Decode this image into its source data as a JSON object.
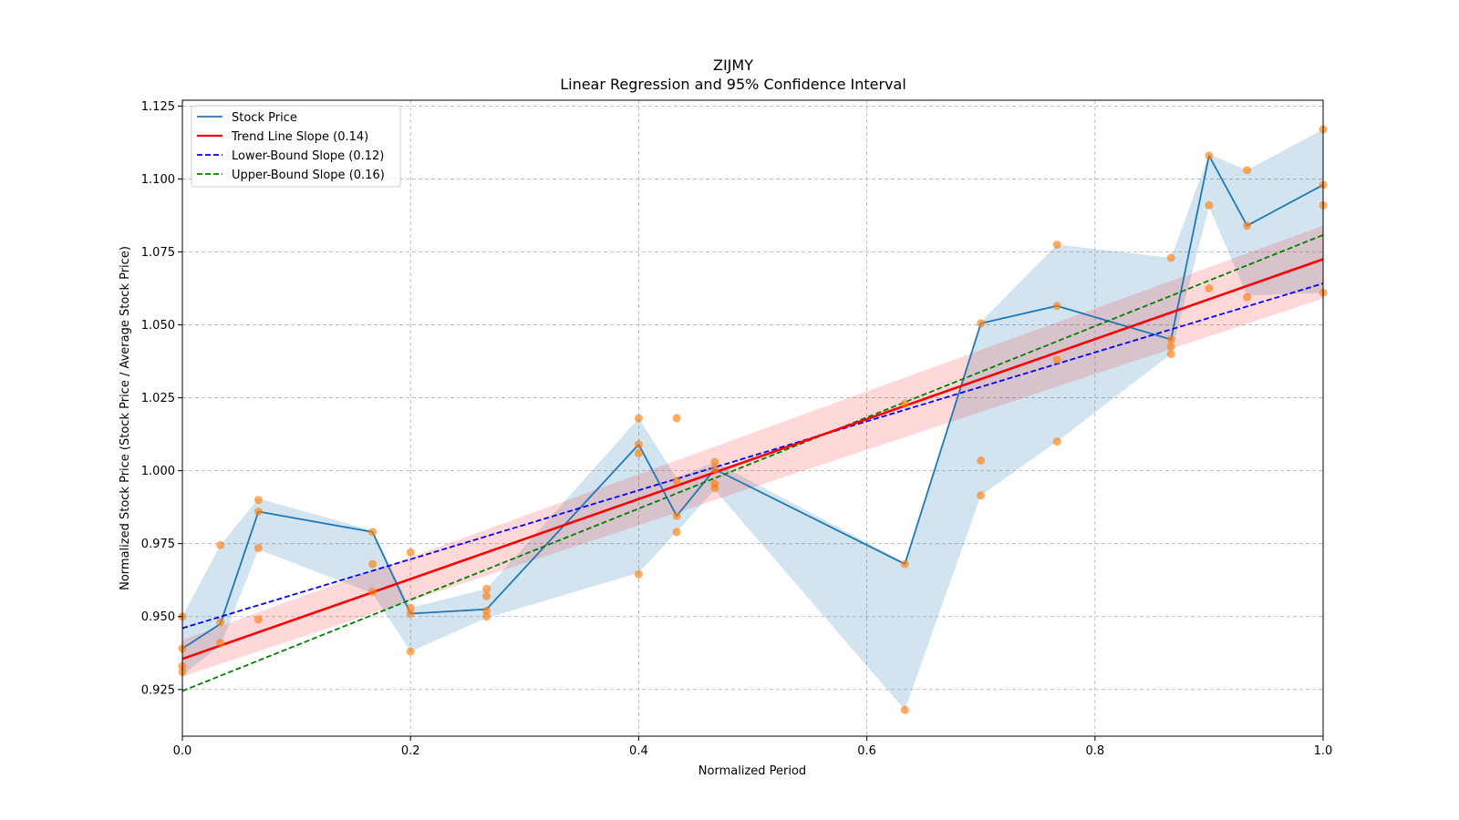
{
  "chart_data": {
    "type": "line",
    "title": "ZIJMY",
    "subtitle": "Linear Regression and 95% Confidence Interval",
    "xlabel": "Normalized Period",
    "ylabel": "Normalized Stock Price (Stock Price / Average Stock Price)",
    "xlim": [
      0.0,
      1.0
    ],
    "ylim": [
      0.909,
      1.127
    ],
    "x_ticks": [
      0.0,
      0.2,
      0.4,
      0.6,
      0.8,
      1.0
    ],
    "x_tick_labels": [
      "0.0",
      "0.2",
      "0.4",
      "0.6",
      "0.8",
      "1.0"
    ],
    "y_ticks": [
      0.925,
      0.95,
      0.975,
      1.0,
      1.025,
      1.05,
      1.075,
      1.1,
      1.125
    ],
    "y_tick_labels": [
      "0.925",
      "0.950",
      "0.975",
      "1.000",
      "1.025",
      "1.050",
      "1.075",
      "1.100",
      "1.125"
    ],
    "grid": true,
    "legend_position": "top-left",
    "colors": {
      "stock": "#1f77b4",
      "stock_band": "#1f77b4",
      "scatter": "#ff7f0e",
      "trend": "#ff0000",
      "trend_band": "#ff0000",
      "lower": "#0000ff",
      "upper": "#008000"
    },
    "series": [
      {
        "name": "Stock Price",
        "style": "solid",
        "x": [
          0.0,
          0.0333,
          0.0667,
          0.1667,
          0.2,
          0.2667,
          0.4,
          0.4333,
          0.4667,
          0.6333,
          0.7,
          0.7667,
          0.8667,
          0.9,
          0.9333,
          1.0
        ],
        "values": [
          0.939,
          0.9475,
          0.986,
          0.979,
          0.951,
          0.9525,
          1.009,
          0.9845,
          1.0005,
          0.968,
          1.0505,
          1.0565,
          1.045,
          1.108,
          1.084,
          1.098
        ],
        "band_lower": [
          0.93,
          0.94,
          0.973,
          0.958,
          0.938,
          0.9495,
          0.965,
          0.979,
          0.9935,
          0.918,
          0.9915,
          1.01,
          1.04,
          1.0905,
          1.06,
          1.061
        ],
        "band_upper": [
          0.95,
          0.9745,
          0.9905,
          0.9795,
          0.953,
          0.9595,
          1.018,
          0.9975,
          1.003,
          0.9685,
          1.051,
          1.0775,
          1.073,
          1.1085,
          1.103,
          1.117
        ]
      },
      {
        "name": "Trend Line Slope (0.14)",
        "style": "solid",
        "x": [
          0.0,
          1.0
        ],
        "values": [
          0.9355,
          1.0725
        ],
        "band_lower": [
          0.9295,
          1.059
        ],
        "band_upper": [
          0.942,
          1.084
        ]
      },
      {
        "name": "Lower-Bound Slope (0.12)",
        "style": "dashed",
        "x": [
          0.0,
          1.0
        ],
        "values": [
          0.946,
          1.0642
        ]
      },
      {
        "name": "Upper-Bound Slope (0.16)",
        "style": "dashed",
        "x": [
          0.0,
          1.0
        ],
        "values": [
          0.9245,
          1.0808
        ]
      }
    ],
    "scatter_points": [
      [
        0.0,
        0.95
      ],
      [
        0.0,
        0.939
      ],
      [
        0.0,
        0.933
      ],
      [
        0.0,
        0.931
      ],
      [
        0.0333,
        0.9745
      ],
      [
        0.0333,
        0.948
      ],
      [
        0.0333,
        0.941
      ],
      [
        0.0667,
        0.99
      ],
      [
        0.0667,
        0.986
      ],
      [
        0.0667,
        0.9735
      ],
      [
        0.0667,
        0.949
      ],
      [
        0.1667,
        0.979
      ],
      [
        0.1667,
        0.968
      ],
      [
        0.1667,
        0.9585
      ],
      [
        0.2,
        0.972
      ],
      [
        0.2,
        0.953
      ],
      [
        0.2,
        0.951
      ],
      [
        0.2,
        0.938
      ],
      [
        0.2667,
        0.9595
      ],
      [
        0.2667,
        0.957
      ],
      [
        0.2667,
        0.952
      ],
      [
        0.2667,
        0.95
      ],
      [
        0.4,
        1.018
      ],
      [
        0.4,
        1.009
      ],
      [
        0.4,
        1.006
      ],
      [
        0.4,
        0.9645
      ],
      [
        0.4333,
        1.018
      ],
      [
        0.4333,
        0.9965
      ],
      [
        0.4333,
        0.9845
      ],
      [
        0.4333,
        0.979
      ],
      [
        0.4667,
        1.003
      ],
      [
        0.4667,
        1.0005
      ],
      [
        0.4667,
        0.9955
      ],
      [
        0.4667,
        0.994
      ],
      [
        0.6333,
        1.023
      ],
      [
        0.6333,
        0.968
      ],
      [
        0.6333,
        0.918
      ],
      [
        0.7,
        1.0505
      ],
      [
        0.7,
        1.0035
      ],
      [
        0.7,
        0.9915
      ],
      [
        0.7667,
        1.0775
      ],
      [
        0.7667,
        1.0565
      ],
      [
        0.7667,
        1.038
      ],
      [
        0.7667,
        1.01
      ],
      [
        0.8667,
        1.073
      ],
      [
        0.8667,
        1.045
      ],
      [
        0.8667,
        1.0425
      ],
      [
        0.8667,
        1.04
      ],
      [
        0.9,
        1.108
      ],
      [
        0.9,
        1.091
      ],
      [
        0.9,
        1.0625
      ],
      [
        0.9333,
        1.103
      ],
      [
        0.9333,
        1.084
      ],
      [
        0.9333,
        1.0595
      ],
      [
        1.0,
        1.117
      ],
      [
        1.0,
        1.098
      ],
      [
        1.0,
        1.091
      ],
      [
        1.0,
        1.061
      ]
    ]
  }
}
